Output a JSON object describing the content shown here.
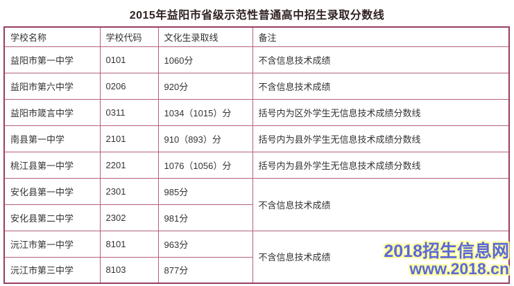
{
  "title": "2015年益阳市省级示范性普通高中招生录取分数线",
  "colors": {
    "border_outer": "#993c62",
    "border_inner": "#b35f80",
    "title_text": "#302222",
    "body_text": "#333333",
    "watermark_blue": "#5b68dd",
    "watermark_outline": "#ffffa0"
  },
  "table": {
    "headers": [
      "学校名称",
      "学校代码",
      "文化生录取线",
      "备注"
    ],
    "rows": [
      {
        "school": "益阳市第一中学",
        "code": "0101",
        "score": "1060分",
        "remark": "不含信息技术成绩"
      },
      {
        "school": "益阳市第六中学",
        "code": "0206",
        "score": "920分",
        "remark": "不含信息技术成绩"
      },
      {
        "school": "益阳市箴言中学",
        "code": "0311",
        "score": "1034（1015）分",
        "remark": "括号内为区外学生无信息技术成绩分数线"
      },
      {
        "school": "南县第一中学",
        "code": "2101",
        "score": "910（893）分",
        "remark": "括号内为县外学生无信息技术成绩分数线"
      },
      {
        "school": "桃江县第一中学",
        "code": "2201",
        "score": "1076（1056）分",
        "remark": "括号内为县外学生无信息技术成绩分数线"
      },
      {
        "school": "安化县第一中学",
        "code": "2301",
        "score": "985分",
        "remark": "不含信息技术成绩",
        "remark_rowspan": 2
      },
      {
        "school": "安化县第二中学",
        "code": "2302",
        "score": "981分"
      },
      {
        "school": "沅江市第一中学",
        "code": "8101",
        "score": "963分",
        "remark": "不含信息技术成绩",
        "remark_rowspan": 2
      },
      {
        "school": "沅江市第三中学",
        "code": "8103",
        "score": "877分"
      }
    ]
  },
  "watermark": {
    "line1": "2018招生信息网",
    "line2": "www.2018.cn"
  }
}
